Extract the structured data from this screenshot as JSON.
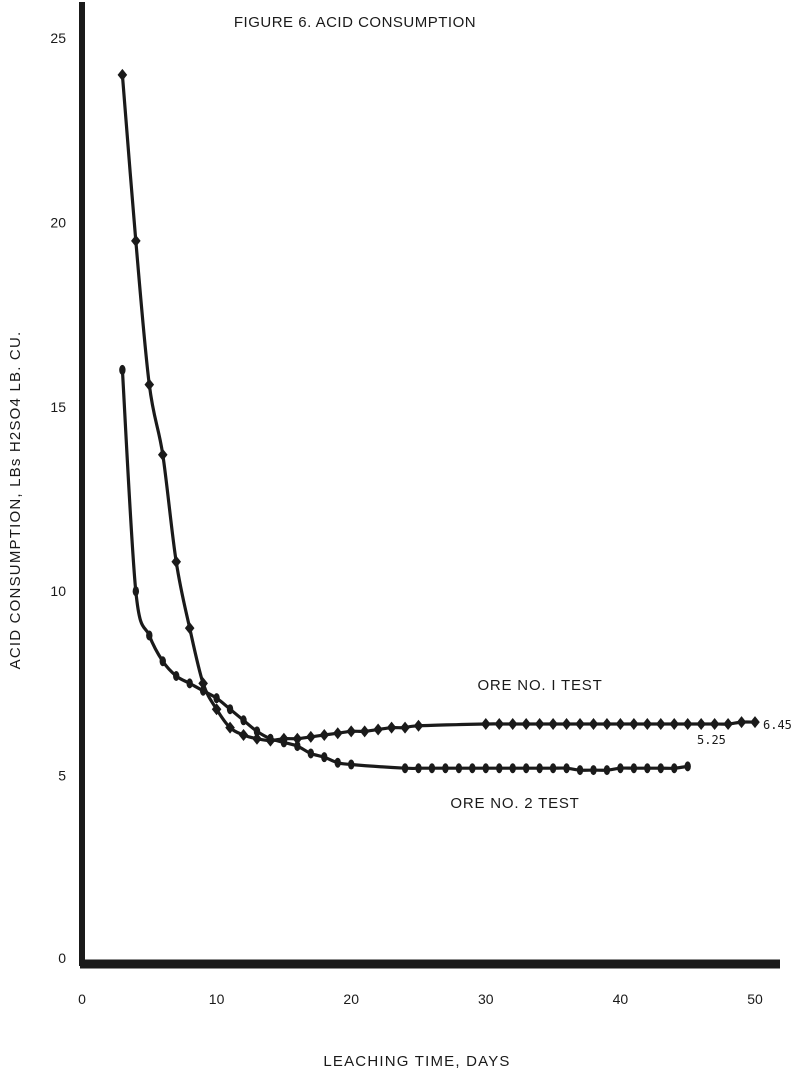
{
  "chart_data": {
    "type": "line",
    "title": "FIGURE 6.  ACID CONSUMPTION",
    "xlabel": "LEACHING TIME, DAYS",
    "ylabel": "ACID CONSUMPTION, LBs H2SO4  LB. CU.",
    "xlim": [
      0,
      50
    ],
    "ylim": [
      0,
      25
    ],
    "x_ticks": [
      0,
      10,
      20,
      30,
      40,
      50
    ],
    "y_ticks": [
      0,
      5,
      10,
      15,
      20,
      25
    ],
    "grid": false,
    "legend": "none",
    "series": [
      {
        "name": "ORE NO. I TEST",
        "end_label": "6.45",
        "marker": "diamond",
        "color": "#1a1a1a",
        "x": [
          3,
          4,
          5,
          6,
          7,
          8,
          9,
          10,
          11,
          12,
          13,
          14,
          15,
          16,
          17,
          18,
          19,
          20,
          21,
          22,
          23,
          24,
          25,
          30,
          31,
          32,
          33,
          34,
          35,
          36,
          37,
          38,
          39,
          40,
          41,
          42,
          43,
          44,
          45,
          46,
          47,
          48,
          49,
          50
        ],
        "y": [
          24.0,
          19.5,
          15.6,
          13.7,
          10.8,
          9.0,
          7.5,
          6.8,
          6.3,
          6.1,
          6.0,
          5.95,
          6.0,
          6.0,
          6.05,
          6.1,
          6.15,
          6.2,
          6.2,
          6.25,
          6.3,
          6.3,
          6.35,
          6.4,
          6.4,
          6.4,
          6.4,
          6.4,
          6.4,
          6.4,
          6.4,
          6.4,
          6.4,
          6.4,
          6.4,
          6.4,
          6.4,
          6.4,
          6.4,
          6.4,
          6.4,
          6.4,
          6.45,
          6.45
        ]
      },
      {
        "name": "ORE NO. 2 TEST",
        "end_label": "5.25",
        "marker": "circle",
        "color": "#1a1a1a",
        "x": [
          3,
          4,
          5,
          6,
          7,
          8,
          9,
          10,
          11,
          12,
          13,
          14,
          15,
          16,
          17,
          18,
          19,
          20,
          24,
          25,
          26,
          27,
          28,
          29,
          30,
          31,
          32,
          33,
          34,
          35,
          36,
          37,
          38,
          39,
          40,
          41,
          42,
          43,
          44,
          45
        ],
        "y": [
          16.0,
          10.0,
          8.8,
          8.1,
          7.7,
          7.5,
          7.3,
          7.1,
          6.8,
          6.5,
          6.2,
          6.0,
          5.9,
          5.8,
          5.6,
          5.5,
          5.35,
          5.3,
          5.2,
          5.2,
          5.2,
          5.2,
          5.2,
          5.2,
          5.2,
          5.2,
          5.2,
          5.2,
          5.2,
          5.2,
          5.2,
          5.15,
          5.15,
          5.15,
          5.2,
          5.2,
          5.2,
          5.2,
          5.2,
          5.25
        ]
      }
    ]
  }
}
